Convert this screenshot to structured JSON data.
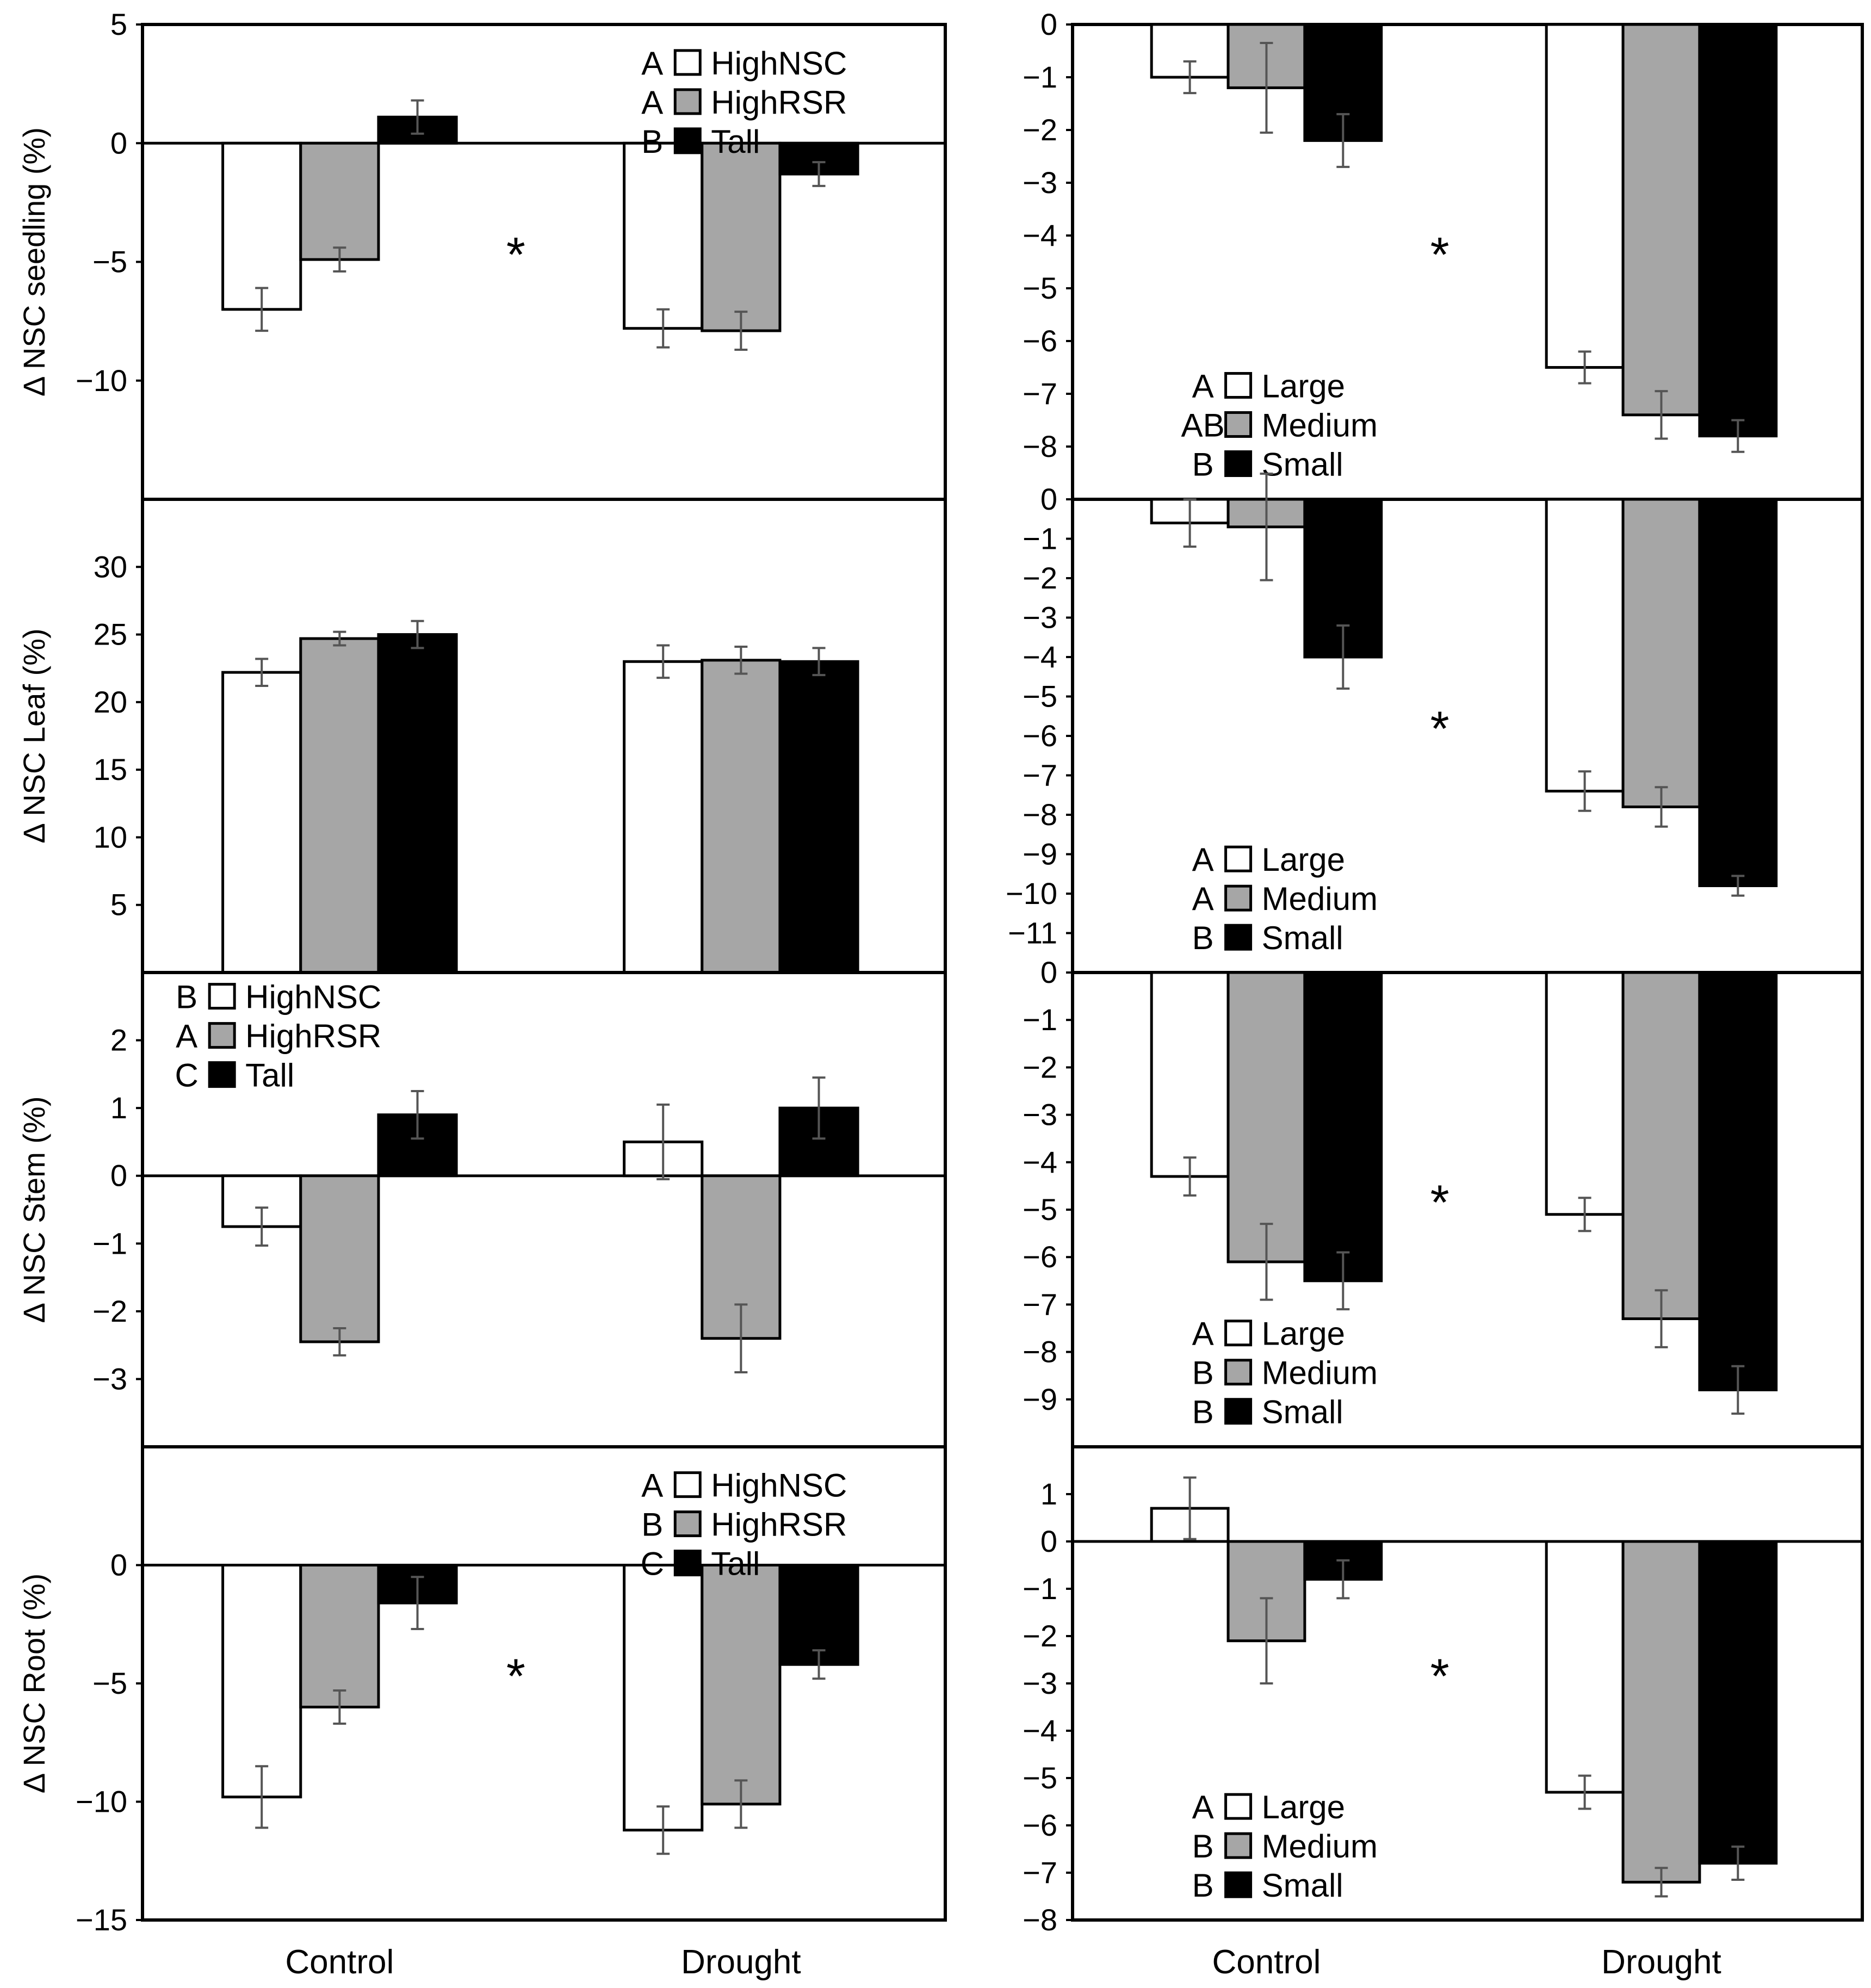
{
  "figure": {
    "x_categories": [
      "Control",
      "Drought"
    ],
    "significance_marker": "*"
  },
  "chart_data": [
    {
      "id": "seedling-size",
      "type": "bar",
      "ylabel": "Δ NSC seedling (%)",
      "ylim": [
        -15,
        5
      ],
      "yticks": [
        5,
        0,
        -5,
        -10
      ],
      "categories": [
        "Control",
        "Drought"
      ],
      "legend": [
        {
          "letter": "A",
          "name": "HighNSC",
          "color": "#ffffff"
        },
        {
          "letter": "A",
          "name": "HighRSR",
          "color": "#a6a6a6"
        },
        {
          "letter": "B",
          "name": "Tall",
          "color": "#000000"
        }
      ],
      "legend_position": "top-right",
      "series": [
        {
          "name": "HighNSC",
          "values": [
            -7.0,
            -7.8
          ],
          "errors": [
            0.9,
            0.8
          ]
        },
        {
          "name": "HighRSR",
          "values": [
            -4.9,
            -7.9
          ],
          "errors": [
            0.5,
            0.8
          ]
        },
        {
          "name": "Tall",
          "values": [
            1.1,
            -1.3
          ],
          "errors": [
            0.7,
            0.5
          ]
        }
      ],
      "star": true,
      "show_xlabels": false
    },
    {
      "id": "seedling-size-class",
      "type": "bar",
      "ylabel": "",
      "ylim": [
        -9,
        0
      ],
      "yticks": [
        0,
        -1,
        -2,
        -3,
        -4,
        -5,
        -6,
        -7,
        -8
      ],
      "categories": [
        "Control",
        "Drought"
      ],
      "legend": [
        {
          "letter": "A",
          "name": "Large",
          "color": "#ffffff"
        },
        {
          "letter": "AB",
          "name": "Medium",
          "color": "#a6a6a6"
        },
        {
          "letter": "B",
          "name": "Small",
          "color": "#000000"
        }
      ],
      "legend_position": "bottom-left",
      "series": [
        {
          "name": "Large",
          "values": [
            -1.0,
            -6.5
          ],
          "errors": [
            0.3,
            0.3
          ]
        },
        {
          "name": "Medium",
          "values": [
            -1.2,
            -7.4
          ],
          "errors": [
            0.85,
            0.45
          ]
        },
        {
          "name": "Small",
          "values": [
            -2.2,
            -7.8
          ],
          "errors": [
            0.5,
            0.3
          ]
        }
      ],
      "star": true,
      "show_xlabels": false
    },
    {
      "id": "leaf-size",
      "type": "bar",
      "ylabel": "Δ NSC Leaf (%)",
      "ylim": [
        0,
        35
      ],
      "yticks": [
        30,
        25,
        20,
        15,
        10,
        5
      ],
      "categories": [
        "Control",
        "Drought"
      ],
      "legend": [],
      "legend_position": "none",
      "series": [
        {
          "name": "HighNSC",
          "values": [
            22.2,
            23.0
          ],
          "errors": [
            1.0,
            1.2
          ]
        },
        {
          "name": "HighRSR",
          "values": [
            24.7,
            23.1
          ],
          "errors": [
            0.5,
            1.0
          ]
        },
        {
          "name": "Tall",
          "values": [
            25.0,
            23.0
          ],
          "errors": [
            1.0,
            1.0
          ]
        }
      ],
      "star": false,
      "show_xlabels": false
    },
    {
      "id": "leaf-size-class",
      "type": "bar",
      "ylabel": "",
      "ylim": [
        -12,
        0
      ],
      "yticks": [
        0,
        -1,
        -2,
        -3,
        -4,
        -5,
        -6,
        -7,
        -8,
        -9,
        -10,
        -11
      ],
      "categories": [
        "Control",
        "Drought"
      ],
      "legend": [
        {
          "letter": "A",
          "name": "Large",
          "color": "#ffffff"
        },
        {
          "letter": "A",
          "name": "Medium",
          "color": "#a6a6a6"
        },
        {
          "letter": "B",
          "name": "Small",
          "color": "#000000"
        }
      ],
      "legend_position": "bottom-left",
      "series": [
        {
          "name": "Large",
          "values": [
            -0.6,
            -7.4
          ],
          "errors": [
            0.6,
            0.5
          ]
        },
        {
          "name": "Medium",
          "values": [
            -0.7,
            -7.8
          ],
          "errors": [
            1.35,
            0.5
          ]
        },
        {
          "name": "Small",
          "values": [
            -4.0,
            -9.8
          ],
          "errors": [
            0.8,
            0.25
          ]
        }
      ],
      "star": true,
      "show_xlabels": false
    },
    {
      "id": "stem-size",
      "type": "bar",
      "ylabel": "Δ NSC Stem (%)",
      "ylim": [
        -4,
        3
      ],
      "yticks": [
        2,
        1,
        0,
        -1,
        -2,
        -3
      ],
      "categories": [
        "Control",
        "Drought"
      ],
      "legend": [
        {
          "letter": "B",
          "name": "HighNSC",
          "color": "#ffffff"
        },
        {
          "letter": "A",
          "name": "HighRSR",
          "color": "#a6a6a6"
        },
        {
          "letter": "C",
          "name": "Tall",
          "color": "#000000"
        }
      ],
      "legend_position": "top-left",
      "series": [
        {
          "name": "HighNSC",
          "values": [
            -0.75,
            0.5
          ],
          "errors": [
            0.28,
            0.55
          ]
        },
        {
          "name": "HighRSR",
          "values": [
            -2.45,
            -2.4
          ],
          "errors": [
            0.2,
            0.5
          ]
        },
        {
          "name": "Tall",
          "values": [
            0.9,
            1.0
          ],
          "errors": [
            0.35,
            0.45
          ]
        }
      ],
      "star": false,
      "show_xlabels": false
    },
    {
      "id": "stem-size-class",
      "type": "bar",
      "ylabel": "",
      "ylim": [
        -10,
        0
      ],
      "yticks": [
        0,
        -1,
        -2,
        -3,
        -4,
        -5,
        -6,
        -7,
        -8,
        -9
      ],
      "categories": [
        "Control",
        "Drought"
      ],
      "legend": [
        {
          "letter": "A",
          "name": "Large",
          "color": "#ffffff"
        },
        {
          "letter": "B",
          "name": "Medium",
          "color": "#a6a6a6"
        },
        {
          "letter": "B",
          "name": "Small",
          "color": "#000000"
        }
      ],
      "legend_position": "bottom-left",
      "series": [
        {
          "name": "Large",
          "values": [
            -4.3,
            -5.1
          ],
          "errors": [
            0.4,
            0.35
          ]
        },
        {
          "name": "Medium",
          "values": [
            -6.1,
            -7.3
          ],
          "errors": [
            0.8,
            0.6
          ]
        },
        {
          "name": "Small",
          "values": [
            -6.5,
            -8.8
          ],
          "errors": [
            0.6,
            0.5
          ]
        }
      ],
      "star": true,
      "show_xlabels": false
    },
    {
      "id": "root-size",
      "type": "bar",
      "ylabel": "Δ NSC Root (%)",
      "ylim": [
        -15,
        5
      ],
      "yticks": [
        0,
        -5,
        -10,
        -15
      ],
      "categories": [
        "Control",
        "Drought"
      ],
      "legend": [
        {
          "letter": "A",
          "name": "HighNSC",
          "color": "#ffffff"
        },
        {
          "letter": "B",
          "name": "HighRSR",
          "color": "#a6a6a6"
        },
        {
          "letter": "C",
          "name": "Tall",
          "color": "#000000"
        }
      ],
      "legend_position": "top-right",
      "series": [
        {
          "name": "HighNSC",
          "values": [
            -9.8,
            -11.2
          ],
          "errors": [
            1.3,
            1.0
          ]
        },
        {
          "name": "HighRSR",
          "values": [
            -6.0,
            -10.1
          ],
          "errors": [
            0.7,
            1.0
          ]
        },
        {
          "name": "Tall",
          "values": [
            -1.6,
            -4.2
          ],
          "errors": [
            1.1,
            0.6
          ]
        }
      ],
      "star": true,
      "show_xlabels": true
    },
    {
      "id": "root-size-class",
      "type": "bar",
      "ylabel": "",
      "ylim": [
        -8,
        2
      ],
      "yticks": [
        1,
        0,
        -1,
        -2,
        -3,
        -4,
        -5,
        -6,
        -7,
        -8
      ],
      "categories": [
        "Control",
        "Drought"
      ],
      "legend": [
        {
          "letter": "A",
          "name": "Large",
          "color": "#ffffff"
        },
        {
          "letter": "B",
          "name": "Medium",
          "color": "#a6a6a6"
        },
        {
          "letter": "B",
          "name": "Small",
          "color": "#000000"
        }
      ],
      "legend_position": "bottom-left",
      "series": [
        {
          "name": "Large",
          "values": [
            0.7,
            -5.3
          ],
          "errors": [
            0.65,
            0.35
          ]
        },
        {
          "name": "Medium",
          "values": [
            -2.1,
            -7.2
          ],
          "errors": [
            0.9,
            0.3
          ]
        },
        {
          "name": "Small",
          "values": [
            -0.8,
            -6.8
          ],
          "errors": [
            0.4,
            0.35
          ]
        }
      ],
      "star": true,
      "show_xlabels": true
    }
  ]
}
